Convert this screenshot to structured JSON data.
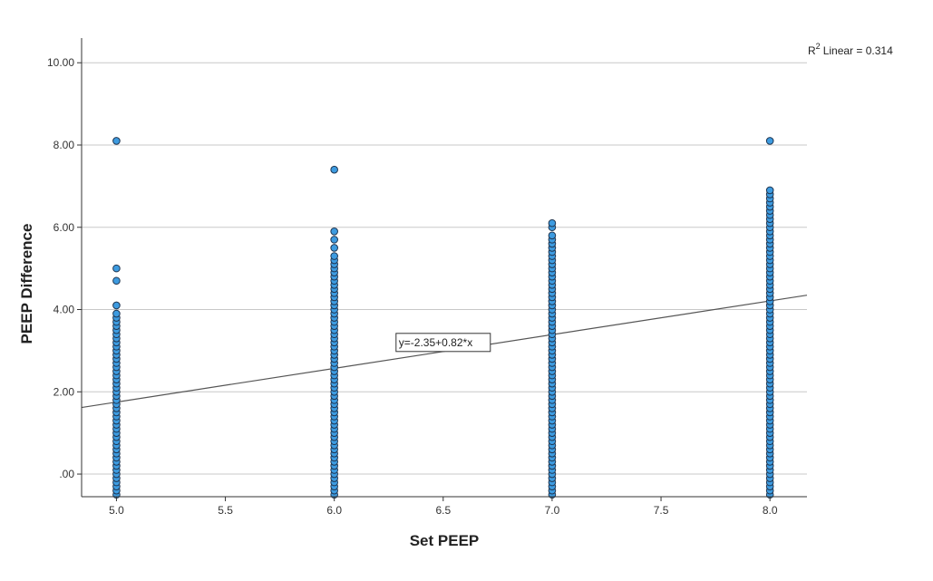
{
  "chart_data": {
    "type": "scatter",
    "title": "",
    "xlabel": "Set PEEP",
    "ylabel": "PEEP Difference",
    "xlim": [
      4.84,
      8.17
    ],
    "ylim": [
      -0.55,
      10.6
    ],
    "x_ticks": [
      5.0,
      5.5,
      6.0,
      6.5,
      7.0,
      7.5,
      8.0
    ],
    "x_tick_labels": [
      "5.0",
      "5.5",
      "6.0",
      "6.5",
      "7.0",
      "7.5",
      "8.0"
    ],
    "y_ticks": [
      0,
      2,
      4,
      6,
      8,
      10
    ],
    "y_tick_labels": [
      ".00",
      "2.00",
      "4.00",
      "6.00",
      "8.00",
      "10.00"
    ],
    "grid": "horizontal",
    "marker_color": "#3d9be0",
    "marker_edge": "#1f3550",
    "series": [
      {
        "x": 5.0,
        "y_range": [
          -0.5,
          3.9
        ],
        "outliers": [
          4.1,
          4.7,
          5.0,
          8.1
        ]
      },
      {
        "x": 6.0,
        "y_range": [
          -0.5,
          5.3
        ],
        "outliers": [
          5.5,
          5.7,
          5.9,
          7.4
        ]
      },
      {
        "x": 7.0,
        "y_range": [
          -0.5,
          5.8
        ],
        "outliers": [
          6.0,
          6.1
        ]
      },
      {
        "x": 8.0,
        "y_range": [
          -0.5,
          6.9
        ],
        "outliers": [
          8.1
        ]
      }
    ],
    "fit_line": {
      "intercept": -2.35,
      "slope": 0.82,
      "label": "y=-2.35+0.82*x",
      "label_x": 6.5
    },
    "r2_label": "Linear = 0.314"
  }
}
